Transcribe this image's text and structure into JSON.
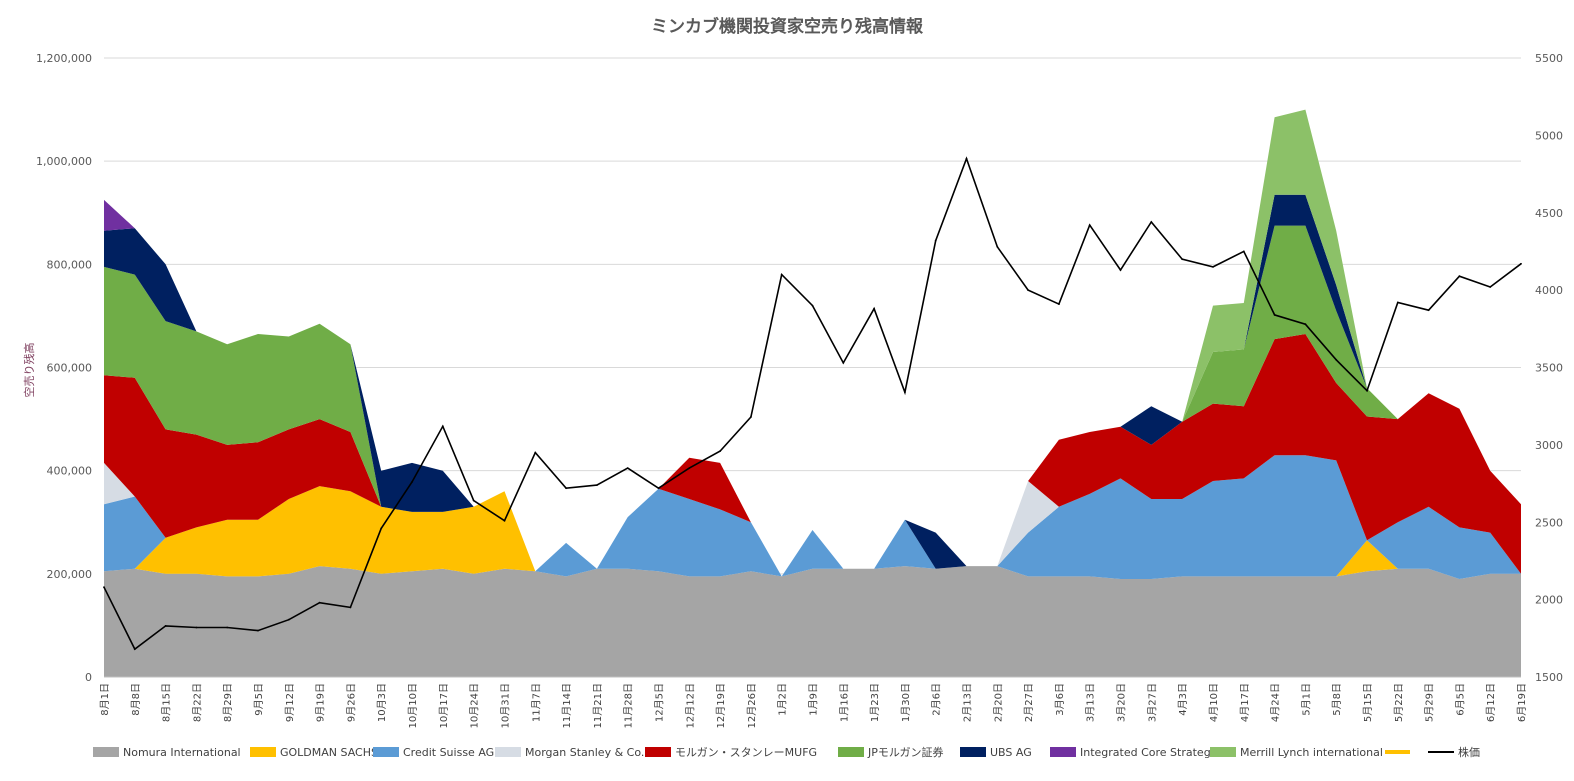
{
  "chart_data": {
    "type": "area",
    "title": "ミンカブ機関投資家空売り残高情報",
    "ylabel": "空売り残高",
    "ylim": [
      0,
      1200000
    ],
    "y_ticks": [
      "0",
      "200,000",
      "400,000",
      "600,000",
      "800,000",
      "1,000,000",
      "1,200,000"
    ],
    "y2lim": [
      1500,
      5500
    ],
    "y2_ticks": [
      "1500",
      "2000",
      "2500",
      "3000",
      "3500",
      "4000",
      "4500",
      "5000",
      "5500"
    ],
    "x_ticks": [
      "8月1日",
      "8月8日",
      "8月15日",
      "8月22日",
      "8月29日",
      "9月5日",
      "9月12日",
      "9月19日",
      "9月26日",
      "10月3日",
      "10月10日",
      "10月17日",
      "10月24日",
      "10月31日",
      "11月7日",
      "11月14日",
      "11月21日",
      "11月28日",
      "12月5日",
      "12月12日",
      "12月19日",
      "12月26日",
      "1月2日",
      "1月9日",
      "1月16日",
      "1月23日",
      "1月30日",
      "2月6日",
      "2月13日",
      "2月20日",
      "2月27日",
      "3月6日",
      "3月13日",
      "3月20日",
      "3月27日",
      "4月3日",
      "4月10日",
      "4月17日",
      "4月24日",
      "5月1日",
      "5月8日",
      "5月15日",
      "5月22日",
      "5月29日",
      "6月5日",
      "6月12日",
      "6月19日"
    ],
    "stacked": true,
    "series": [
      {
        "name": "Nomura International",
        "color": "#a5a5a5",
        "values": [
          205000,
          210000,
          200000,
          200000,
          195000,
          195000,
          200000,
          215000,
          210000,
          200000,
          205000,
          210000,
          200000,
          210000,
          205000,
          195000,
          210000,
          210000,
          205000,
          195000,
          195000,
          205000,
          195000,
          210000,
          210000,
          210000,
          215000,
          210000,
          215000,
          215000,
          195000,
          195000,
          195000,
          190000,
          190000,
          195000,
          195000,
          195000,
          195000,
          195000,
          195000,
          205000,
          210000,
          210000,
          190000,
          200000,
          200000
        ]
      },
      {
        "name": "GOLDMAN SACHS",
        "color": "#ffc000",
        "values": [
          0,
          0,
          70000,
          90000,
          110000,
          110000,
          145000,
          155000,
          150000,
          130000,
          115000,
          110000,
          130000,
          150000,
          0,
          0,
          0,
          0,
          0,
          0,
          0,
          0,
          0,
          0,
          0,
          0,
          0,
          0,
          0,
          0,
          0,
          0,
          0,
          0,
          0,
          0,
          0,
          0,
          0,
          0,
          0,
          60000,
          0,
          0,
          0,
          0,
          0
        ]
      },
      {
        "name": "Credit Suisse AG",
        "color": "#5b9bd5",
        "values": [
          130000,
          140000,
          0,
          0,
          0,
          0,
          0,
          0,
          0,
          0,
          0,
          0,
          0,
          0,
          0,
          65000,
          0,
          100000,
          160000,
          150000,
          130000,
          95000,
          0,
          75000,
          0,
          0,
          90000,
          0,
          0,
          0,
          85000,
          135000,
          160000,
          195000,
          155000,
          150000,
          185000,
          190000,
          235000,
          235000,
          225000,
          0,
          90000,
          120000,
          100000,
          80000,
          0
        ]
      },
      {
        "name": "Morgan Stanley & Co.",
        "color": "#d6dce4",
        "values": [
          80000,
          0,
          0,
          0,
          0,
          0,
          0,
          0,
          0,
          0,
          0,
          0,
          0,
          0,
          0,
          0,
          0,
          0,
          0,
          0,
          0,
          0,
          0,
          0,
          0,
          0,
          0,
          0,
          0,
          0,
          100000,
          0,
          0,
          0,
          0,
          0,
          0,
          0,
          0,
          0,
          0,
          0,
          0,
          0,
          0,
          0,
          0
        ]
      },
      {
        "name": "モルガン・スタンレーMUFG",
        "color": "#c00000",
        "values": [
          170000,
          230000,
          210000,
          180000,
          145000,
          150000,
          135000,
          130000,
          115000,
          0,
          0,
          0,
          0,
          0,
          0,
          0,
          0,
          0,
          0,
          80000,
          90000,
          0,
          0,
          0,
          0,
          0,
          0,
          0,
          0,
          0,
          0,
          130000,
          120000,
          100000,
          105000,
          150000,
          150000,
          140000,
          225000,
          235000,
          150000,
          240000,
          200000,
          220000,
          230000,
          120000,
          135000
        ]
      },
      {
        "name": "JPモルガン証券",
        "color": "#70ad47",
        "values": [
          210000,
          200000,
          210000,
          200000,
          195000,
          210000,
          180000,
          185000,
          170000,
          0,
          0,
          0,
          0,
          0,
          0,
          0,
          0,
          0,
          0,
          0,
          0,
          0,
          0,
          0,
          0,
          0,
          0,
          0,
          0,
          0,
          0,
          0,
          0,
          0,
          0,
          0,
          100000,
          110000,
          220000,
          210000,
          140000,
          55000,
          0,
          0,
          0,
          0,
          0
        ]
      },
      {
        "name": "UBS AG",
        "color": "#002060",
        "values": [
          70000,
          90000,
          110000,
          0,
          0,
          0,
          0,
          0,
          0,
          70000,
          95000,
          80000,
          0,
          0,
          0,
          0,
          0,
          0,
          0,
          0,
          0,
          0,
          0,
          0,
          0,
          0,
          0,
          70000,
          0,
          0,
          0,
          0,
          0,
          0,
          75000,
          0,
          0,
          0,
          60000,
          60000,
          50000,
          0,
          0,
          0,
          0,
          0,
          0
        ]
      },
      {
        "name": "Integrated Core Strategies",
        "color": "#7030a0",
        "values": [
          60000,
          0,
          0,
          0,
          0,
          0,
          0,
          0,
          0,
          0,
          0,
          0,
          0,
          0,
          0,
          0,
          0,
          0,
          0,
          0,
          0,
          0,
          0,
          0,
          0,
          0,
          0,
          0,
          0,
          0,
          0,
          0,
          0,
          0,
          0,
          0,
          0,
          0,
          0,
          0,
          0,
          0,
          0,
          0,
          0,
          0,
          0
        ]
      },
      {
        "name": "Merrill Lynch international",
        "color": "#8cc168",
        "values": [
          0,
          0,
          0,
          0,
          0,
          0,
          0,
          0,
          0,
          0,
          0,
          0,
          0,
          0,
          0,
          0,
          0,
          0,
          0,
          0,
          0,
          0,
          0,
          0,
          0,
          0,
          0,
          0,
          0,
          0,
          0,
          0,
          0,
          0,
          0,
          0,
          90000,
          90000,
          150000,
          165000,
          105000,
          0,
          0,
          0,
          0,
          0,
          0
        ]
      },
      {
        "name": "",
        "color": "#ffc000",
        "values": [
          0,
          0,
          0,
          0,
          0,
          0,
          0,
          0,
          0,
          0,
          0,
          0,
          0,
          0,
          0,
          0,
          0,
          0,
          0,
          0,
          0,
          0,
          0,
          0,
          0,
          0,
          0,
          0,
          0,
          0,
          0,
          0,
          0,
          0,
          0,
          0,
          0,
          0,
          0,
          0,
          0,
          0,
          0,
          0,
          0,
          0,
          0
        ]
      }
    ],
    "line_series": {
      "name": "株価",
      "color": "#000000",
      "axis": "right",
      "values": [
        2080,
        1680,
        1830,
        1820,
        1820,
        1800,
        1870,
        1980,
        1950,
        2460,
        2760,
        3120,
        2640,
        2510,
        2950,
        2720,
        2740,
        2850,
        2720,
        2850,
        2960,
        3180,
        4100,
        3900,
        3530,
        3880,
        3340,
        4320,
        4850,
        4280,
        4000,
        3910,
        4420,
        4130,
        4440,
        4200,
        4150,
        4250,
        3840,
        3780,
        3550,
        3350,
        3920,
        3870,
        4090,
        4020,
        4170
      ]
    },
    "grid": true,
    "legend_position": "bottom"
  }
}
